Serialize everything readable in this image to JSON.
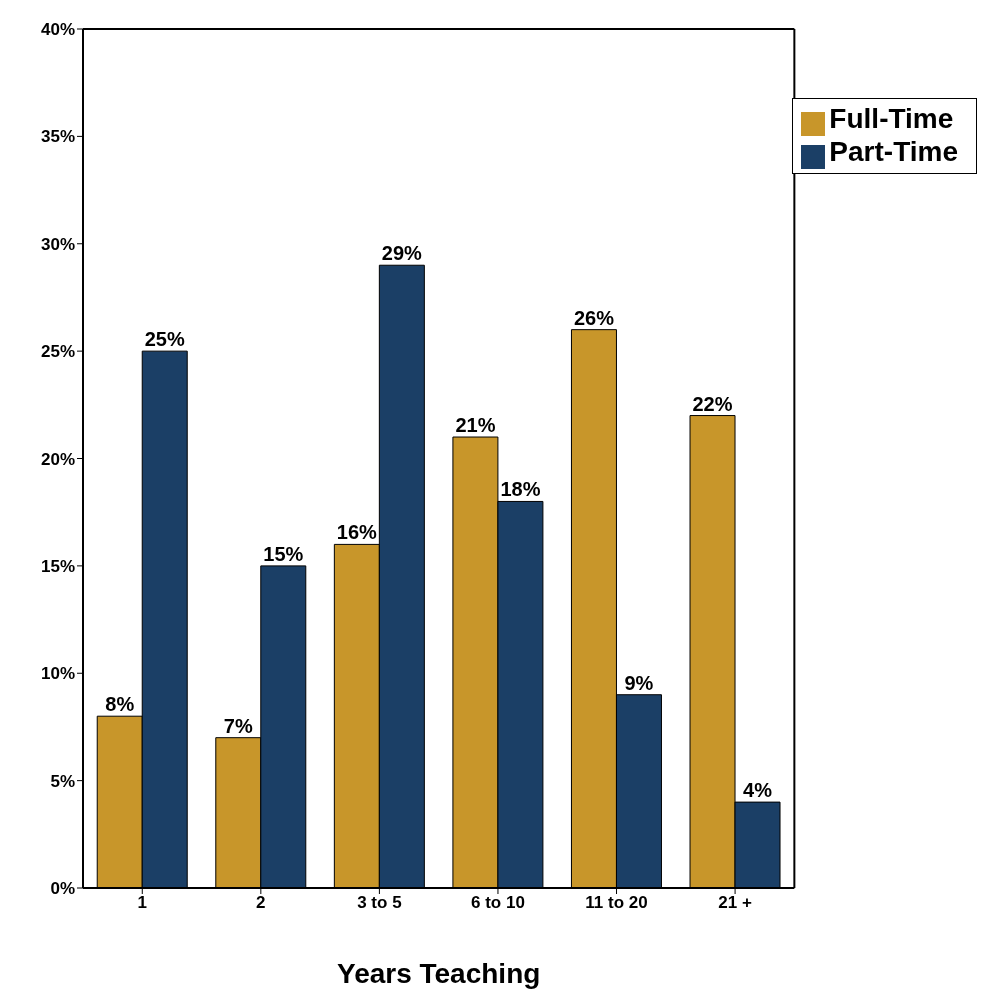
{
  "chart_data": {
    "type": "bar",
    "xlabel": "Years Teaching",
    "categories": [
      "1",
      "2",
      "3 to 5",
      "6 to 10",
      "11 to 20",
      "21 +"
    ],
    "series": [
      {
        "name": "Full-Time",
        "color": "#c8962a",
        "values": [
          8,
          7,
          16,
          21,
          26,
          22
        ],
        "value_labels": [
          "8%",
          "7%",
          "16%",
          "21%",
          "26%",
          "22%"
        ]
      },
      {
        "name": "Part-Time",
        "color": "#1b3f66",
        "values": [
          25,
          15,
          29,
          18,
          9,
          4
        ],
        "value_labels": [
          "25%",
          "15%",
          "29%",
          "18%",
          "9%",
          "4%"
        ]
      }
    ],
    "ylim": [
      0,
      40
    ],
    "yticks": [
      {
        "value": 0,
        "label": "0%"
      },
      {
        "value": 5,
        "label": "5%"
      },
      {
        "value": 10,
        "label": "10%"
      },
      {
        "value": 15,
        "label": "15%"
      },
      {
        "value": 20,
        "label": "20%"
      },
      {
        "value": 25,
        "label": "25%"
      },
      {
        "value": 30,
        "label": "30%"
      },
      {
        "value": 35,
        "label": "35%"
      },
      {
        "value": 40,
        "label": "40%"
      }
    ],
    "grid": false,
    "legend": "top right"
  }
}
